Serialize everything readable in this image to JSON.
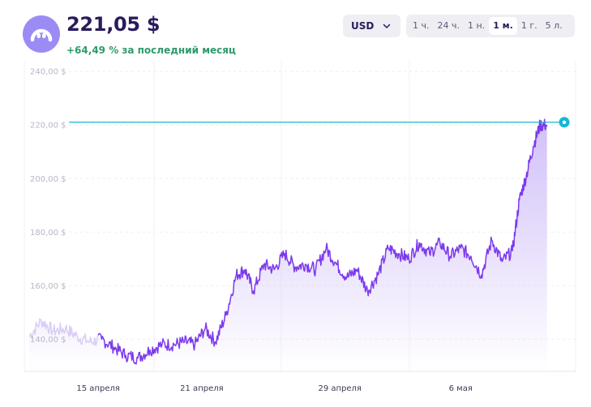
{
  "header": {
    "price": "221,05 $",
    "change_value": "+64,49 %",
    "change_label": " за последний месяц",
    "logo_icon": "coin-logo-icon"
  },
  "currency": {
    "label": "USD",
    "icon": "chevron-down-icon"
  },
  "periods": [
    {
      "label": "1 ч.",
      "active": false
    },
    {
      "label": "24 ч.",
      "active": false
    },
    {
      "label": "1 н.",
      "active": false
    },
    {
      "label": "1 м.",
      "active": true
    },
    {
      "label": "1 г.",
      "active": false
    },
    {
      "label": "5 л.",
      "active": false
    }
  ],
  "colors": {
    "line": "#7c3aed",
    "area": "#c9b5f7",
    "reference": "#15b7d6",
    "up": "#2f9a6b",
    "accent_dark": "#2a1b5c"
  },
  "chart_data": {
    "type": "area",
    "y_ticks": [
      "240,00 $",
      "220,00 $",
      "200,00 $",
      "180,00 $",
      "160,00 $",
      "140,00 $"
    ],
    "y_tick_values": [
      240,
      220,
      200,
      180,
      160,
      140
    ],
    "x_ticks": [
      "15 апреля",
      "21 апреля",
      "29 апреля",
      "6 мая"
    ],
    "x_tick_days": [
      4,
      10,
      18,
      25
    ],
    "ylim": [
      128,
      244
    ],
    "xlim": [
      0,
      31
    ],
    "reference_value": 221.05,
    "faded_end_day": 4,
    "x": [
      0,
      0.7,
      1.4,
      2.1,
      2.8,
      3.5,
      4.2,
      4.9,
      5.6,
      6.3,
      7.0,
      7.7,
      8.4,
      9.0,
      9.6,
      10.2,
      10.8,
      11.4,
      12.0,
      12.5,
      13.0,
      13.6,
      14.2,
      14.8,
      15.4,
      16.0,
      16.6,
      17.2,
      17.8,
      18.4,
      19.0,
      19.6,
      20.2,
      20.8,
      21.4,
      22.0,
      22.6,
      23.2,
      23.8,
      24.4,
      25.0,
      25.6,
      26.2,
      26.8,
      27.4,
      28.0,
      28.4,
      28.8,
      29.2,
      29.6,
      30.0
    ],
    "y": [
      141,
      147,
      143,
      144,
      141,
      139,
      140,
      137,
      134,
      133,
      136,
      138,
      138,
      139,
      138,
      144,
      139,
      149,
      164,
      166,
      158,
      168,
      166,
      172,
      167,
      168,
      166,
      174,
      168,
      163,
      166,
      158,
      164,
      174,
      172,
      170,
      176,
      172,
      176,
      171,
      174,
      171,
      164,
      177,
      169,
      173,
      192,
      201,
      212,
      220,
      220
    ]
  }
}
